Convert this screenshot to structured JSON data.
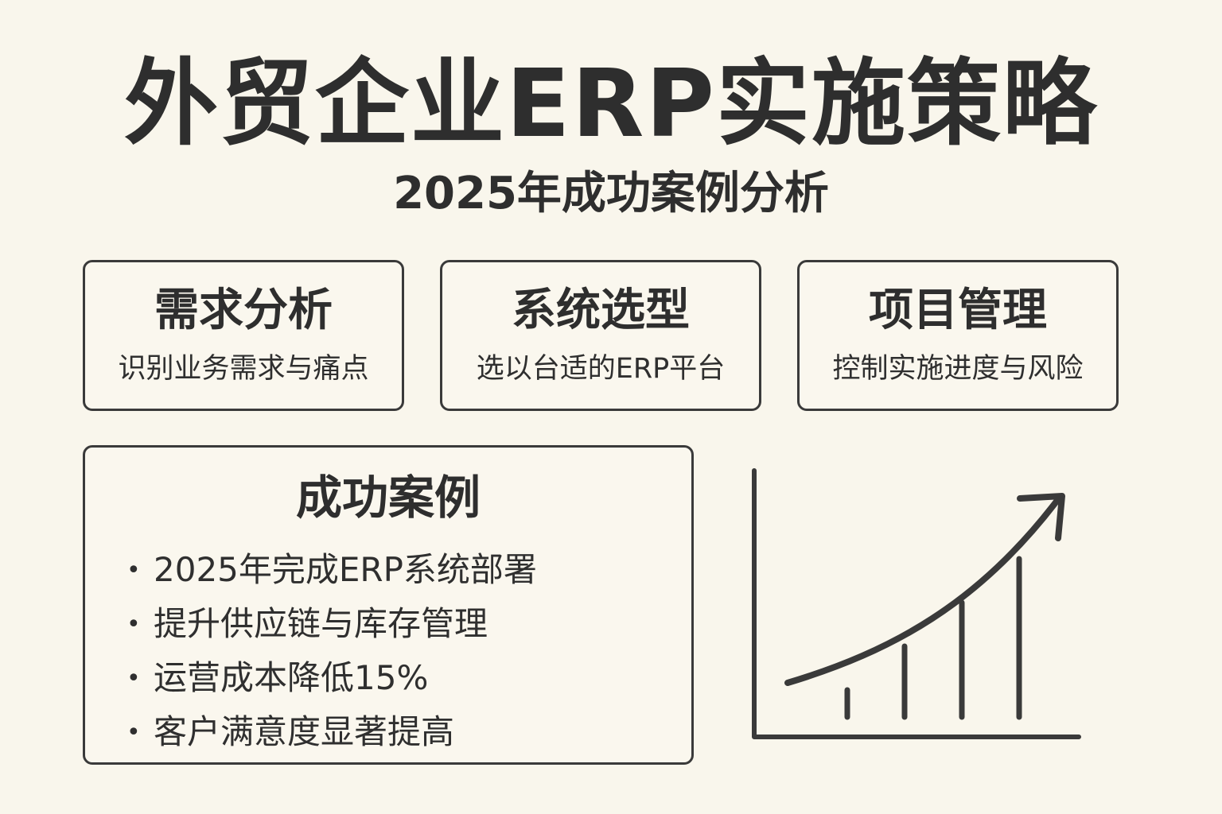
{
  "title": "外贸企业ERP实施策略",
  "subtitle": "2025年成功案例分析",
  "cards": [
    {
      "title": "需求分析",
      "desc": "识别业务需求与痛点"
    },
    {
      "title": "系统选型",
      "desc": "选以台适的ERP平台"
    },
    {
      "title": "项目管理",
      "desc": "控制实施进度与风险"
    }
  ],
  "success_case": {
    "title": "成功案例",
    "bullet_symbol": "•",
    "items": [
      "2025年完成ERP系统部署",
      "提升供应链与库存管理",
      "运营成本降低15%",
      "客户满意度显著提高"
    ]
  },
  "growth_icon": {
    "icon": "growth-chart-icon",
    "bar_levels": [
      1,
      2,
      3,
      4
    ],
    "trend": "up",
    "color": "#3a3a3a"
  },
  "colors": {
    "background": "#f9f6ec",
    "text": "#2e2e2e",
    "border": "#3a3a3a"
  }
}
